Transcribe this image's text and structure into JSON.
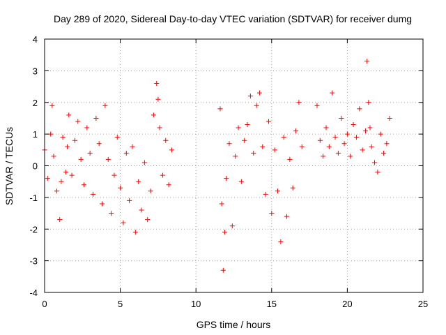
{
  "chart_data": {
    "type": "scatter",
    "title": "Day 289 of 2020, Sidereal Day-to-day VTEC variation (SDTVAR) for receiver dumg",
    "xlabel": "GPS time / hours",
    "ylabel": "SDTVAR / TECUs",
    "xlim": [
      0,
      25
    ],
    "ylim": [
      -4,
      4
    ],
    "xticks": [
      0,
      5,
      10,
      15,
      20,
      25
    ],
    "yticks": [
      -4,
      -3,
      -2,
      -1,
      0,
      1,
      2,
      3,
      4
    ],
    "xtick_labels": [
      "0",
      "5",
      "10",
      "15",
      "20",
      "25"
    ],
    "ytick_labels": [
      "-4",
      "-3",
      "-2",
      "-1",
      "0",
      "1",
      "2",
      "3",
      "4"
    ],
    "grid": true,
    "marker": "+",
    "color": "#ff0000",
    "series": [
      {
        "name": "SDTVAR",
        "x": [
          0.0,
          0.2,
          0.4,
          0.5,
          0.6,
          0.8,
          1.0,
          1.1,
          1.2,
          1.4,
          1.5,
          1.6,
          1.8,
          2.0,
          2.2,
          2.4,
          2.6,
          2.8,
          3.0,
          3.2,
          3.4,
          3.6,
          3.8,
          4.0,
          4.2,
          4.4,
          4.6,
          4.8,
          5.0,
          5.2,
          5.4,
          5.6,
          5.8,
          6.0,
          6.2,
          6.4,
          6.6,
          6.8,
          7.0,
          7.2,
          7.4,
          7.5,
          7.6,
          7.8,
          8.0,
          8.2,
          8.4,
          11.6,
          11.7,
          11.8,
          11.9,
          12.0,
          12.2,
          12.4,
          12.6,
          12.8,
          13.0,
          13.2,
          13.4,
          13.6,
          13.8,
          14.0,
          14.2,
          14.4,
          14.6,
          14.8,
          15.0,
          15.2,
          15.4,
          15.6,
          15.8,
          16.0,
          16.2,
          16.4,
          16.6,
          16.8,
          17.0,
          18.0,
          18.2,
          18.4,
          18.6,
          18.8,
          19.0,
          19.2,
          19.4,
          19.6,
          19.8,
          20.0,
          20.2,
          20.4,
          20.6,
          20.8,
          21.0,
          21.2,
          21.3,
          21.4,
          21.5,
          21.6,
          21.8,
          22.0,
          22.2,
          22.4,
          22.6,
          22.8
        ],
        "y": [
          0.5,
          -0.4,
          1.0,
          1.9,
          0.3,
          -0.8,
          -1.7,
          -0.5,
          0.9,
          -0.2,
          0.6,
          1.6,
          -0.3,
          0.8,
          1.4,
          0.2,
          -0.6,
          1.2,
          0.4,
          -0.9,
          1.5,
          0.7,
          -1.2,
          1.9,
          0.2,
          -1.5,
          -0.3,
          0.9,
          -0.7,
          -1.8,
          0.4,
          -1.1,
          0.6,
          -2.1,
          -0.5,
          -1.4,
          0.1,
          -1.7,
          -0.8,
          1.6,
          2.6,
          2.1,
          1.2,
          -0.3,
          0.8,
          -0.6,
          0.5,
          1.8,
          -1.2,
          -3.3,
          -2.1,
          -0.4,
          0.7,
          -1.9,
          0.3,
          1.2,
          -0.5,
          0.8,
          1.3,
          2.2,
          0.4,
          1.9,
          2.3,
          0.6,
          -0.9,
          1.4,
          -1.5,
          0.5,
          -0.8,
          -2.4,
          0.9,
          -1.6,
          0.2,
          -0.7,
          1.1,
          2.0,
          0.6,
          1.9,
          0.8,
          0.3,
          1.2,
          0.6,
          2.3,
          0.9,
          0.4,
          1.5,
          0.7,
          1.0,
          0.3,
          1.3,
          0.9,
          1.8,
          0.5,
          1.1,
          3.3,
          2.0,
          1.2,
          0.6,
          0.1,
          -0.2,
          1.0,
          0.4,
          0.7,
          1.5
        ]
      }
    ]
  }
}
